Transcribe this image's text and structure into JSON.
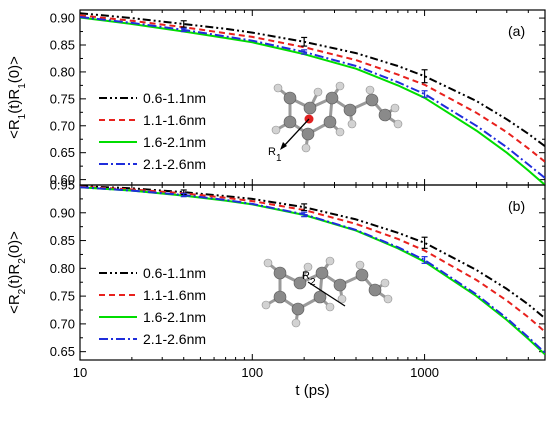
{
  "chart_data": [
    {
      "type": "line",
      "panel_label": "(a)",
      "ylabel": "<R1(t)R1(0)>",
      "xlabel": "",
      "xscale": "log",
      "xlim": [
        10,
        5000
      ],
      "ylim": [
        0.59,
        0.915
      ],
      "yticks": [
        "0.60",
        "0.65",
        "0.70",
        "0.75",
        "0.80",
        "0.85",
        "0.90"
      ],
      "ytick_values": [
        0.6,
        0.65,
        0.7,
        0.75,
        0.8,
        0.85,
        0.9
      ],
      "legend_position": "center-left",
      "series": [
        {
          "name": "0.6-1.1nm",
          "color": "#000000",
          "dash": "dash-dot-dot",
          "x": [
            10,
            20,
            40,
            70,
            100,
            200,
            400,
            700,
            1000,
            2000,
            3000,
            4000,
            5000
          ],
          "y": [
            0.909,
            0.9,
            0.889,
            0.88,
            0.873,
            0.856,
            0.835,
            0.811,
            0.792,
            0.746,
            0.712,
            0.685,
            0.662
          ]
        },
        {
          "name": "1.1-1.6nm",
          "color": "#e8211d",
          "dash": "dash",
          "x": [
            10,
            20,
            40,
            70,
            100,
            200,
            400,
            700,
            1000,
            2000,
            3000,
            4000,
            5000
          ],
          "y": [
            0.905,
            0.895,
            0.883,
            0.872,
            0.865,
            0.846,
            0.822,
            0.795,
            0.776,
            0.724,
            0.688,
            0.658,
            0.633
          ]
        },
        {
          "name": "1.6-2.1nm",
          "color": "#00dd00",
          "dash": "solid",
          "x": [
            10,
            20,
            40,
            70,
            100,
            200,
            400,
            700,
            1000,
            2000,
            3000,
            4000,
            5000
          ],
          "y": [
            0.901,
            0.889,
            0.875,
            0.863,
            0.855,
            0.833,
            0.806,
            0.775,
            0.752,
            0.691,
            0.65,
            0.617,
            0.59
          ]
        },
        {
          "name": "2.1-2.6nm",
          "color": "#1f2ddb",
          "dash": "dash-dot",
          "x": [
            10,
            20,
            40,
            70,
            100,
            200,
            400,
            700,
            1000,
            2000,
            3000,
            4000,
            5000
          ],
          "y": [
            0.902,
            0.891,
            0.878,
            0.866,
            0.858,
            0.837,
            0.811,
            0.781,
            0.759,
            0.7,
            0.66,
            0.628,
            0.603
          ]
        }
      ],
      "error_bars": [
        {
          "series": "0.6-1.1nm",
          "x": 40,
          "y": 0.889,
          "err": 0.006
        },
        {
          "series": "0.6-1.1nm",
          "x": 200,
          "y": 0.856,
          "err": 0.008
        },
        {
          "series": "0.6-1.1nm",
          "x": 1000,
          "y": 0.792,
          "err": 0.012
        },
        {
          "series": "2.1-2.6nm",
          "x": 40,
          "y": 0.878,
          "err": 0.003
        },
        {
          "series": "2.1-2.6nm",
          "x": 200,
          "y": 0.837,
          "err": 0.004
        },
        {
          "series": "2.1-2.6nm",
          "x": 1000,
          "y": 0.759,
          "err": 0.006
        }
      ],
      "annotation": "R1"
    },
    {
      "type": "line",
      "panel_label": "(b)",
      "ylabel": "<R2(t)R2(0)>",
      "xlabel": "t (ps)",
      "xscale": "log",
      "xlim": [
        10,
        5000
      ],
      "ylim": [
        0.635,
        0.95
      ],
      "yticks": [
        "0.65",
        "0.70",
        "0.75",
        "0.80",
        "0.85",
        "0.90",
        "0.95"
      ],
      "ytick_values": [
        0.65,
        0.7,
        0.75,
        0.8,
        0.85,
        0.9,
        0.95
      ],
      "xticks": [
        "10",
        "100",
        "1000"
      ],
      "xtick_values": [
        10,
        100,
        1000
      ],
      "legend_position": "center-left",
      "series": [
        {
          "name": "0.6-1.1nm",
          "color": "#000000",
          "dash": "dash-dot-dot",
          "x": [
            10,
            20,
            40,
            70,
            100,
            200,
            400,
            700,
            1000,
            2000,
            3000,
            4000,
            5000
          ],
          "y": [
            0.948,
            0.944,
            0.937,
            0.93,
            0.925,
            0.91,
            0.888,
            0.864,
            0.846,
            0.797,
            0.763,
            0.735,
            0.71
          ]
        },
        {
          "name": "1.1-1.6nm",
          "color": "#e8211d",
          "dash": "dash",
          "x": [
            10,
            20,
            40,
            70,
            100,
            200,
            400,
            700,
            1000,
            2000,
            3000,
            4000,
            5000
          ],
          "y": [
            0.947,
            0.942,
            0.935,
            0.927,
            0.921,
            0.905,
            0.88,
            0.853,
            0.832,
            0.779,
            0.742,
            0.712,
            0.686
          ]
        },
        {
          "name": "1.6-2.1nm",
          "color": "#00dd00",
          "dash": "solid",
          "x": [
            10,
            20,
            40,
            70,
            100,
            200,
            400,
            700,
            1000,
            2000,
            3000,
            4000,
            5000
          ],
          "y": [
            0.946,
            0.94,
            0.931,
            0.922,
            0.915,
            0.896,
            0.868,
            0.836,
            0.812,
            0.75,
            0.707,
            0.673,
            0.645
          ]
        },
        {
          "name": "2.1-2.6nm",
          "color": "#1f2ddb",
          "dash": "dash-dot",
          "x": [
            10,
            20,
            40,
            70,
            100,
            200,
            400,
            700,
            1000,
            2000,
            3000,
            4000,
            5000
          ],
          "y": [
            0.946,
            0.94,
            0.932,
            0.923,
            0.916,
            0.897,
            0.869,
            0.838,
            0.815,
            0.753,
            0.71,
            0.676,
            0.648
          ]
        }
      ],
      "error_bars": [
        {
          "series": "0.6-1.1nm",
          "x": 40,
          "y": 0.937,
          "err": 0.004
        },
        {
          "series": "0.6-1.1nm",
          "x": 200,
          "y": 0.91,
          "err": 0.006
        },
        {
          "series": "0.6-1.1nm",
          "x": 1000,
          "y": 0.846,
          "err": 0.01
        },
        {
          "series": "2.1-2.6nm",
          "x": 40,
          "y": 0.932,
          "err": 0.003
        },
        {
          "series": "2.1-2.6nm",
          "x": 200,
          "y": 0.897,
          "err": 0.004
        },
        {
          "series": "2.1-2.6nm",
          "x": 1000,
          "y": 0.815,
          "err": 0.006
        }
      ],
      "annotation": "R2"
    }
  ]
}
